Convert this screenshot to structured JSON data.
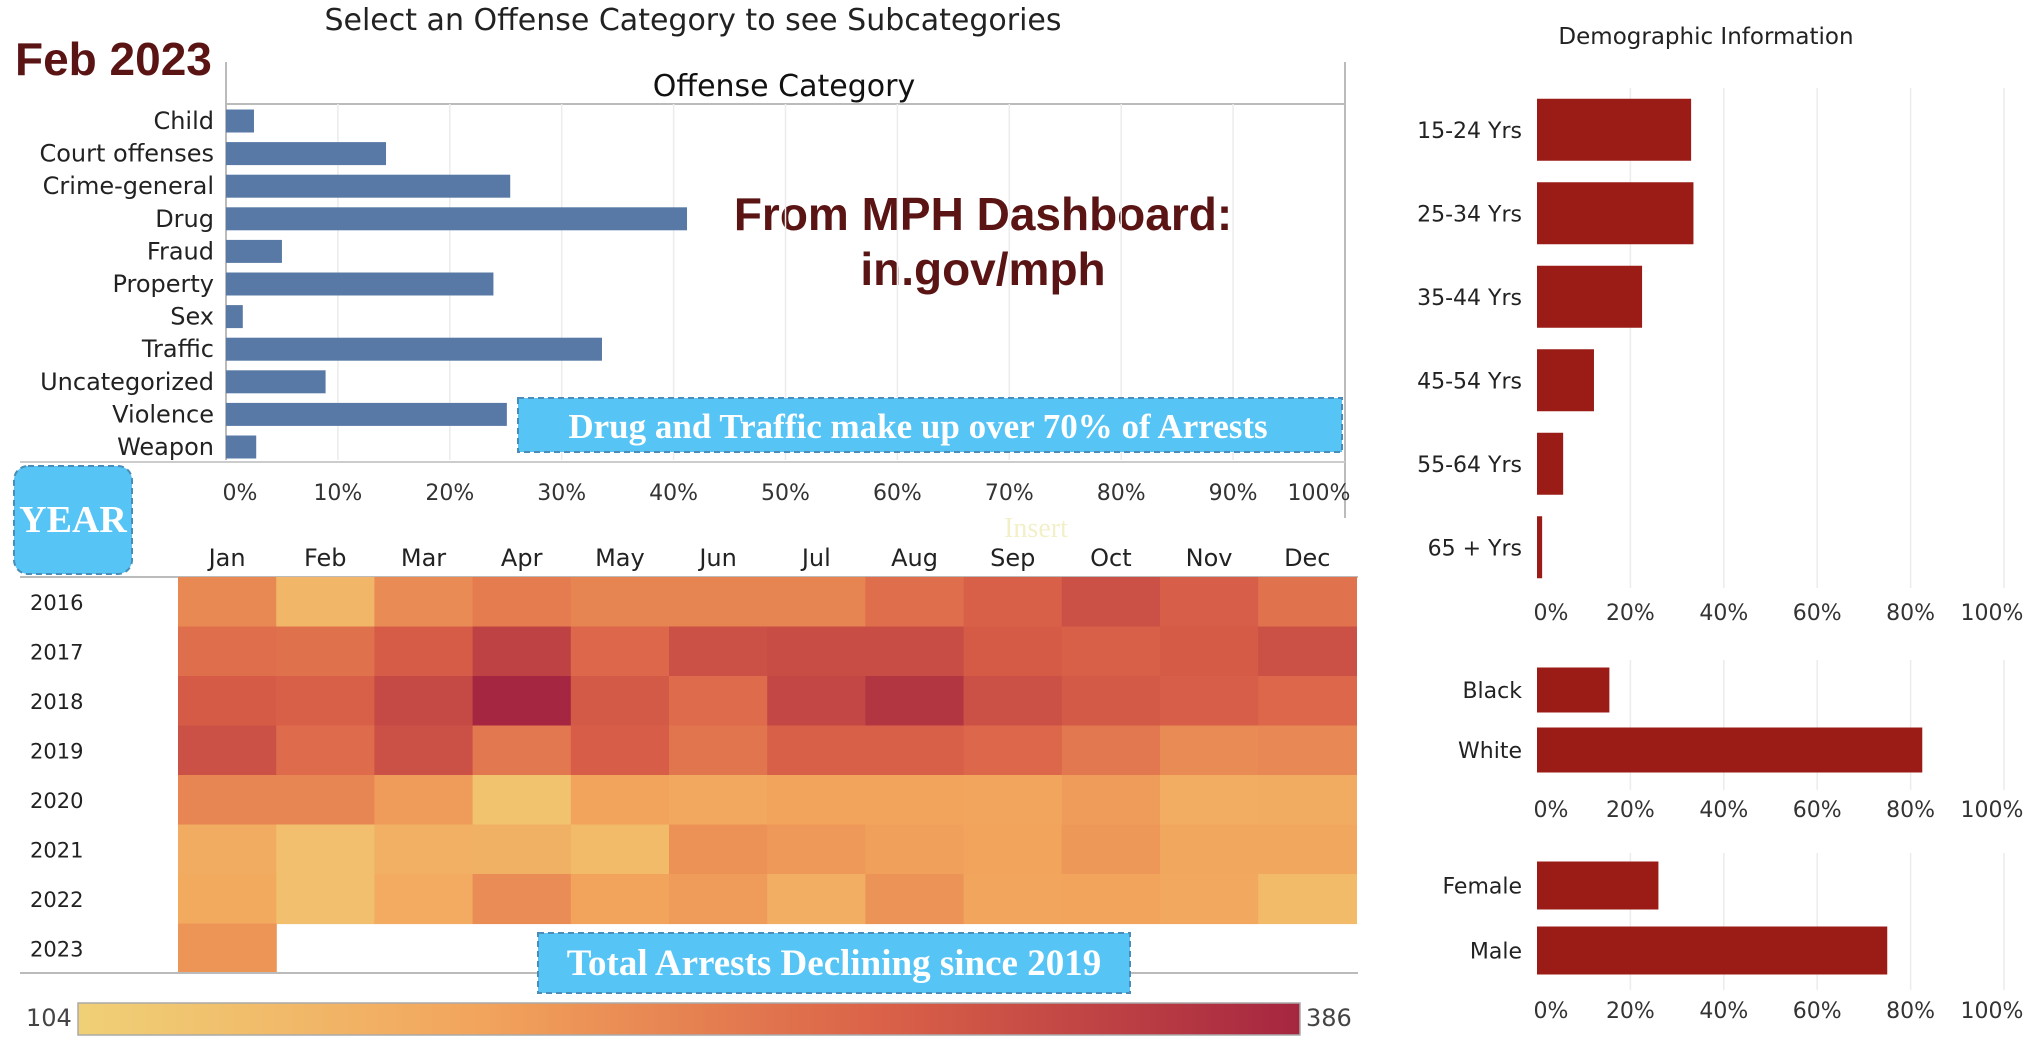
{
  "page": {
    "header": "Select an Offense Category to see Subcategories",
    "date_label": "Feb 2023",
    "source_line1": "From MPH Dashboard:",
    "source_line2": "in.gov/mph",
    "year_button": "YEAR",
    "faint_text": "Insert",
    "demo_header": "Demographic Information",
    "colors": {
      "bar_blue": "#5879A6",
      "bar_red": "#9B1C17",
      "title_brown": "#5A1414",
      "callout_bg": "#56C4F5"
    }
  },
  "chart_data": [
    {
      "type": "bar",
      "orientation": "horizontal",
      "title": "Offense Category",
      "categories": [
        "Child",
        "Court offenses",
        "Crime-general",
        "Drug",
        "Fraud",
        "Property",
        "Sex",
        "Traffic",
        "Uncategorized",
        "Violence",
        "Weapon"
      ],
      "values": [
        2.5,
        14.3,
        25.4,
        41.2,
        5.0,
        23.9,
        1.5,
        33.6,
        8.9,
        25.1,
        2.7
      ],
      "unit": "%",
      "xlim": [
        0,
        100
      ],
      "x_ticks": [
        "0%",
        "10%",
        "20%",
        "30%",
        "40%",
        "50%",
        "60%",
        "70%",
        "80%",
        "90%",
        "100%"
      ],
      "annotation": "Drug and Traffic make up over 70% of Arrests",
      "grid": true
    },
    {
      "type": "heatmap",
      "title": "",
      "x_categories": [
        "Jan",
        "Feb",
        "Mar",
        "Apr",
        "May",
        "Jun",
        "Jul",
        "Aug",
        "Sep",
        "Oct",
        "Nov",
        "Dec"
      ],
      "y_categories": [
        "2016",
        "2017",
        "2018",
        "2019",
        "2020",
        "2021",
        "2022",
        "2023"
      ],
      "values": [
        [
          235,
          158,
          232,
          252,
          242,
          242,
          242,
          270,
          292,
          318,
          295,
          265
        ],
        [
          270,
          268,
          298,
          340,
          282,
          318,
          322,
          322,
          300,
          292,
          300,
          318
        ],
        [
          300,
          292,
          328,
          386,
          302,
          276,
          332,
          362,
          318,
          302,
          295,
          282
        ],
        [
          318,
          276,
          318,
          258,
          296,
          262,
          292,
          292,
          282,
          258,
          232,
          236
        ],
        [
          240,
          240,
          210,
          132,
          198,
          188,
          198,
          198,
          195,
          208,
          178,
          180
        ],
        [
          180,
          140,
          172,
          170,
          148,
          222,
          212,
          202,
          198,
          215,
          190,
          190
        ],
        [
          185,
          140,
          182,
          230,
          198,
          210,
          175,
          220,
          195,
          198,
          188,
          148
        ],
        [
          218,
          null,
          null,
          null,
          null,
          null,
          null,
          null,
          null,
          null,
          null,
          null
        ]
      ],
      "color_scale": {
        "min": 104,
        "max": 386,
        "min_label": "104",
        "max_label": "386"
      },
      "annotation": "Total Arrests Declining since 2019"
    },
    {
      "type": "bar",
      "orientation": "horizontal",
      "title": "Demographic Information",
      "categories": [
        "15-24 Yrs",
        "25-34 Yrs",
        "35-44 Yrs",
        "45-54 Yrs",
        "55-64 Yrs",
        "65 + Yrs"
      ],
      "values": [
        33,
        33.5,
        22.5,
        12.2,
        5.6,
        1.1
      ],
      "unit": "%",
      "xlim": [
        0,
        100
      ],
      "x_ticks": [
        "0%",
        "20%",
        "40%",
        "60%",
        "80%",
        "100%"
      ],
      "grid": true
    },
    {
      "type": "bar",
      "orientation": "horizontal",
      "categories": [
        "Black",
        "White"
      ],
      "values": [
        15.5,
        82.5
      ],
      "unit": "%",
      "xlim": [
        0,
        100
      ],
      "x_ticks": [
        "0%",
        "20%",
        "40%",
        "60%",
        "80%",
        "100%"
      ],
      "grid": true
    },
    {
      "type": "bar",
      "orientation": "horizontal",
      "categories": [
        "Female",
        "Male"
      ],
      "values": [
        26,
        75
      ],
      "unit": "%",
      "xlim": [
        0,
        100
      ],
      "x_ticks": [
        "0%",
        "20%",
        "40%",
        "60%",
        "80%",
        "100%"
      ],
      "grid": true
    }
  ]
}
